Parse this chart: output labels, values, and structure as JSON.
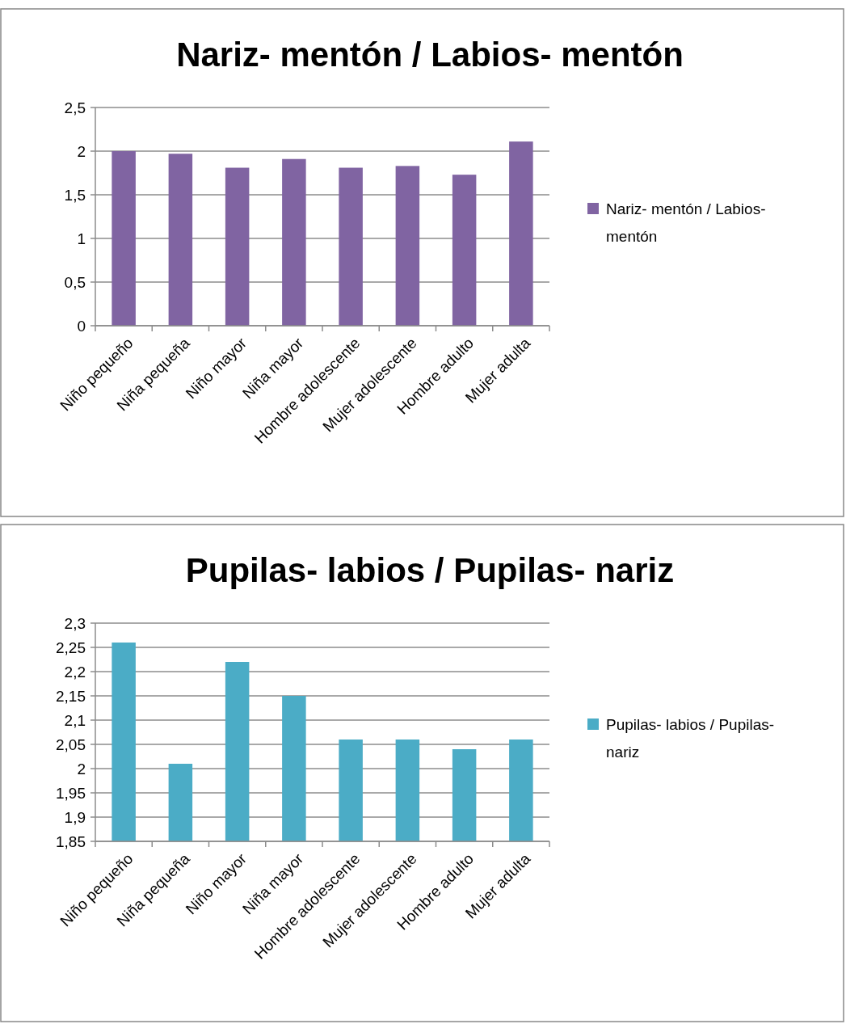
{
  "chart_data": [
    {
      "type": "bar",
      "title": "Nariz- mentón / Labios- mentón",
      "categories": [
        "Niño pequeño",
        "Niña pequeña",
        "Niño mayor",
        "Niña mayor",
        "Hombre adolescente",
        "Mujer adolescente",
        "Hombre adulto",
        "Mujer adulta"
      ],
      "series": [
        {
          "name": "Nariz- mentón / Labios- mentón",
          "color": "#8064a2",
          "values": [
            2.0,
            1.97,
            1.81,
            1.91,
            1.81,
            1.83,
            1.73,
            2.11
          ]
        }
      ],
      "ylim": [
        0,
        2.5
      ],
      "yticks": [
        0,
        {
          "value": 0.5,
          "label": "0,5"
        },
        1,
        {
          "value": 1.5,
          "label": "1,5"
        },
        2,
        {
          "value": 2.5,
          "label": "2,5"
        }
      ],
      "grid": "y",
      "legend": "right"
    },
    {
      "type": "bar",
      "title": "Pupilas- labios / Pupilas- nariz",
      "categories": [
        "Niño pequeño",
        "Niña pequeña",
        "Niño mayor",
        "Niña mayor",
        "Hombre adolescente",
        "Mujer adolescente",
        "Hombre adulto",
        "Mujer adulta"
      ],
      "series": [
        {
          "name": "Pupilas- labios / Pupilas- nariz",
          "color": "#4bacc6",
          "values": [
            2.26,
            2.01,
            2.22,
            2.15,
            2.06,
            2.06,
            2.04,
            2.06
          ]
        }
      ],
      "ylim": [
        1.85,
        2.3
      ],
      "yticks": [
        {
          "value": 1.85,
          "label": "1,85"
        },
        {
          "value": 1.9,
          "label": "1,9"
        },
        {
          "value": 1.95,
          "label": "1,95"
        },
        2,
        {
          "value": 2.05,
          "label": "2,05"
        },
        {
          "value": 2.1,
          "label": "2,1"
        },
        {
          "value": 2.15,
          "label": "2,15"
        },
        {
          "value": 2.2,
          "label": "2,2"
        },
        {
          "value": 2.25,
          "label": "2,25"
        },
        {
          "value": 2.3,
          "label": "2,3"
        }
      ],
      "grid": "y",
      "legend": "right"
    }
  ]
}
